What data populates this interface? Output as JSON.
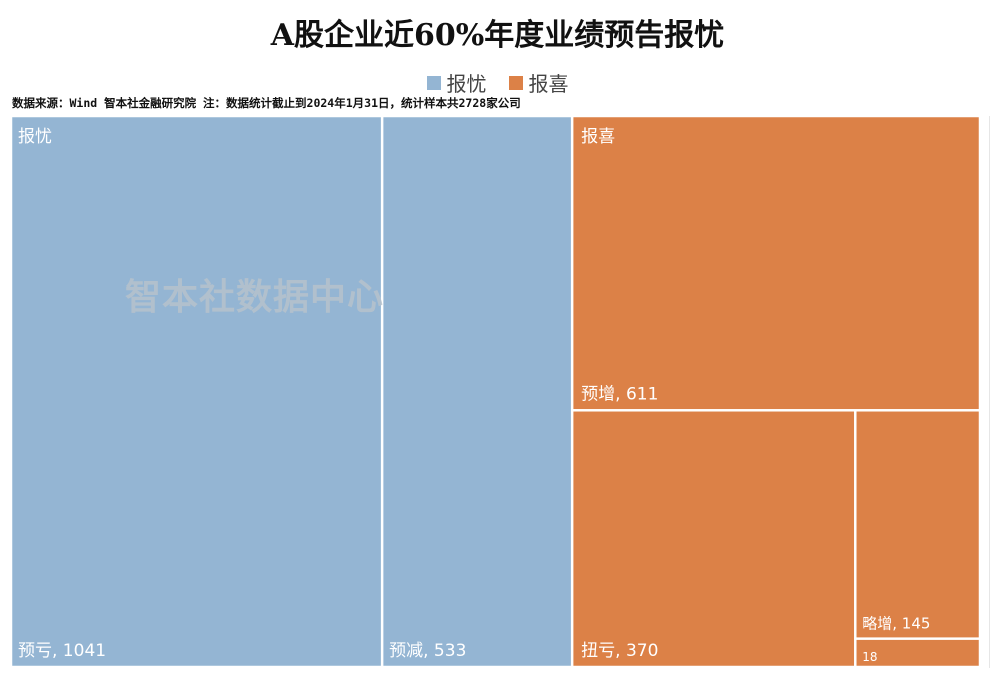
{
  "title": "A股企业近60%年度业绩预告报忧",
  "legend": [
    {
      "label": "报忧",
      "color": "#94b5d3"
    },
    {
      "label": "报喜",
      "color": "#dc8147"
    }
  ],
  "source_note": "数据来源：Wind 智本社金融研究院  注：数据统计截止到2024年1月31日，统计样本共2728家公司",
  "watermark": "智本社数据中心",
  "chart_data": {
    "type": "treemap",
    "title": "A股企业近60%年度业绩预告报忧",
    "groups": [
      {
        "name": "报忧",
        "color": "#94b5d3",
        "items": [
          {
            "label": "预亏",
            "value": 1041
          },
          {
            "label": "预减",
            "value": 533
          }
        ]
      },
      {
        "name": "报喜",
        "color": "#dc8147",
        "items": [
          {
            "label": "预增",
            "value": 611
          },
          {
            "label": "扭亏",
            "value": 370
          },
          {
            "label": "略增",
            "value": 145
          },
          {
            "label": "",
            "value": 18
          }
        ]
      }
    ]
  }
}
